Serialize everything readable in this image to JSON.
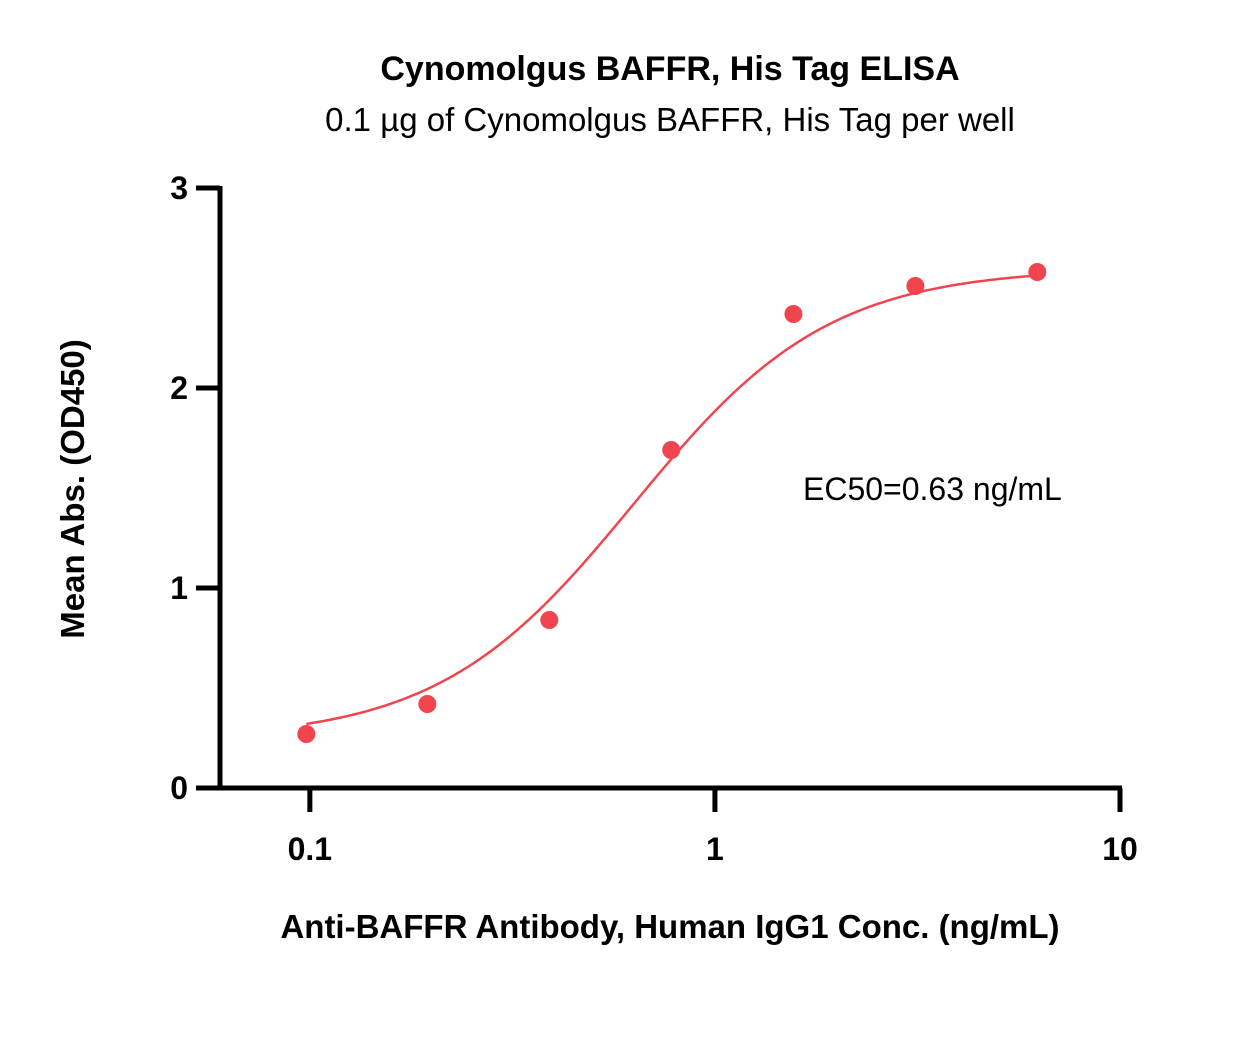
{
  "chart_data": {
    "type": "scatter",
    "title": "Cynomolgus BAFFR, His Tag ELISA",
    "subtitle": "0.1 µg of Cynomolgus BAFFR, His Tag per well",
    "xlabel": "Anti-BAFFR Antibody, Human IgG1 Conc. (ng/mL)",
    "ylabel": "Mean Abs. (OD450)",
    "xscale": "log",
    "xlim": [
      0.06,
      10
    ],
    "ylim": [
      0,
      3
    ],
    "x_ticks": [
      "0.1",
      "1",
      "10"
    ],
    "y_ticks": [
      "0",
      "1",
      "2",
      "3"
    ],
    "series": [
      {
        "x": [
          0.098,
          0.195,
          0.39,
          0.78,
          1.5625,
          3.125,
          6.25
        ],
        "y": [
          0.27,
          0.42,
          0.84,
          1.69,
          2.37,
          2.51,
          2.58
        ],
        "color": "#f0454f"
      }
    ],
    "fit_curve": {
      "model": "4PL sigmoid",
      "bottom": 0.24,
      "top": 2.6,
      "ec50": 0.63,
      "hill": 1.8,
      "color": "#f0454f"
    },
    "annotation": "EC50=0.63 ng/mL",
    "grid": false,
    "legend": "none"
  }
}
